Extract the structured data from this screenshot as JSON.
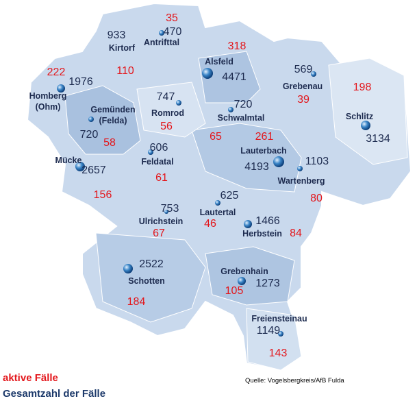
{
  "municipalities": [
    {
      "name": "Antrifttal",
      "total": 470,
      "active": 35
    },
    {
      "name": "Kirtorf",
      "total": 933,
      "active": 110
    },
    {
      "name": "Alsfeld",
      "total": 4471,
      "active": 318
    },
    {
      "name": "Grebenau",
      "total": 569,
      "active": 39
    },
    {
      "name": "Schlitz",
      "total": 3134,
      "active": 198
    },
    {
      "name": "Homberg\n(Ohm)",
      "total": 1976,
      "active": 222
    },
    {
      "name": "Gemünden\n(Felda)",
      "total": 720,
      "active": 58
    },
    {
      "name": "Romrod",
      "total": 747,
      "active": 56
    },
    {
      "name": "Schwalmtal",
      "total": 720,
      "active": 65
    },
    {
      "name": "Lauterbach",
      "total": 4193,
      "active": 261
    },
    {
      "name": "Wartenberg",
      "total": 1103,
      "active": 80
    },
    {
      "name": "Mücke",
      "total": 2657,
      "active": 156
    },
    {
      "name": "Feldatal",
      "total": 606,
      "active": 61
    },
    {
      "name": "Lautertal",
      "total": 625,
      "active": 46
    },
    {
      "name": "Ulrichstein",
      "total": 753,
      "active": 67
    },
    {
      "name": "Herbstein",
      "total": 1466,
      "active": 84
    },
    {
      "name": "Schotten",
      "total": 2522,
      "active": 184
    },
    {
      "name": "Grebenhain",
      "total": 1273,
      "active": 105
    },
    {
      "name": "Freiensteinau",
      "total": 1149,
      "active": 143
    }
  ],
  "legend": {
    "active": "aktive Fälle",
    "total": "Gesamtzahl der Fälle"
  },
  "source": "Quelle: Vogelsbergkreis/AfB Fulda"
}
